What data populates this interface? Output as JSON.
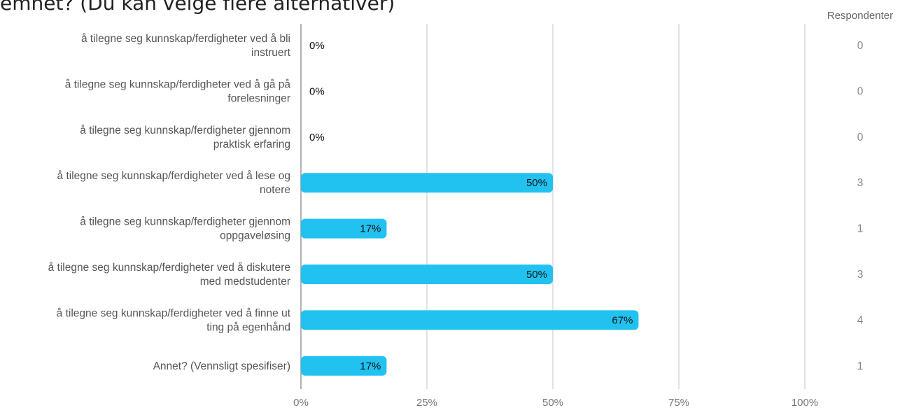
{
  "chart_data": {
    "type": "bar",
    "orientation": "horizontal",
    "title": "emnet? (Du kan velge flere alternativer)",
    "respondents_header": "Respondenter",
    "categories": [
      [
        "å tilegne seg kunnskap/ferdigheter ved å bli",
        "instruert"
      ],
      [
        "å tilegne seg kunnskap/ferdigheter ved å gå på",
        "forelesninger"
      ],
      [
        "å tilegne seg kunnskap/ferdigheter gjennom",
        "praktisk erfaring"
      ],
      [
        "å tilegne seg kunnskap/ferdigheter ved å lese og",
        "notere"
      ],
      [
        "å tilegne seg kunnskap/ferdigheter gjennom",
        "oppgaveløsing"
      ],
      [
        "å tilegne seg kunnskap/ferdigheter ved å diskutere",
        "med medstudenter"
      ],
      [
        "å tilegne seg kunnskap/ferdigheter ved å finne ut",
        "ting på egenhånd"
      ],
      [
        "Annet? (Vennsligt spesifiser)"
      ]
    ],
    "values": [
      0,
      0,
      0,
      50,
      17,
      50,
      67,
      17
    ],
    "value_labels": [
      "0%",
      "0%",
      "0%",
      "50%",
      "17%",
      "50%",
      "67%",
      "17%"
    ],
    "respondents": [
      "0",
      "0",
      "0",
      "3",
      "1",
      "3",
      "4",
      "1"
    ],
    "xlim": [
      0,
      100
    ],
    "x_ticks": [
      0,
      25,
      50,
      75,
      100
    ],
    "x_tick_labels": [
      "0%",
      "25%",
      "50%",
      "75%",
      "100%"
    ],
    "grid": true,
    "bar_color": "#21c2f0",
    "grid_color": "#cfcfcf",
    "axis_color": "#999999"
  }
}
